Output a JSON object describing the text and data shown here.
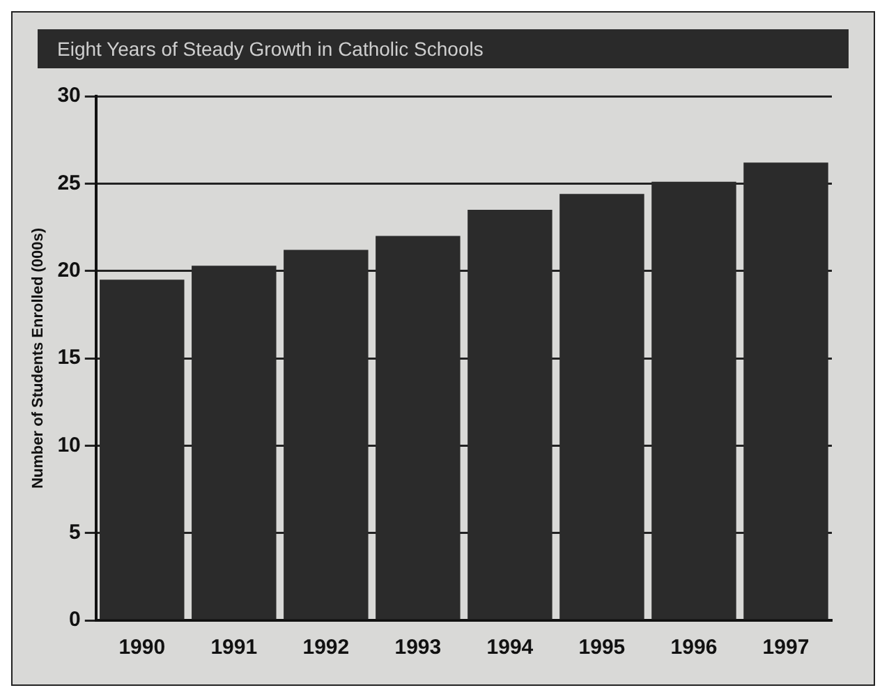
{
  "chart_data": {
    "type": "bar",
    "title": "Eight Years of Steady Growth in Catholic Schools",
    "ylabel": "Number of Students Enrolled (000s)",
    "categories": [
      "1990",
      "1991",
      "1992",
      "1993",
      "1994",
      "1995",
      "1996",
      "1997"
    ],
    "values": [
      19.5,
      20.3,
      21.2,
      22.0,
      23.5,
      24.4,
      25.1,
      26.2
    ],
    "color": "#2b2b2b",
    "ylim": [
      0,
      30
    ],
    "yticks": [
      0,
      5,
      10,
      15,
      20,
      25,
      30
    ],
    "grid": "y"
  }
}
